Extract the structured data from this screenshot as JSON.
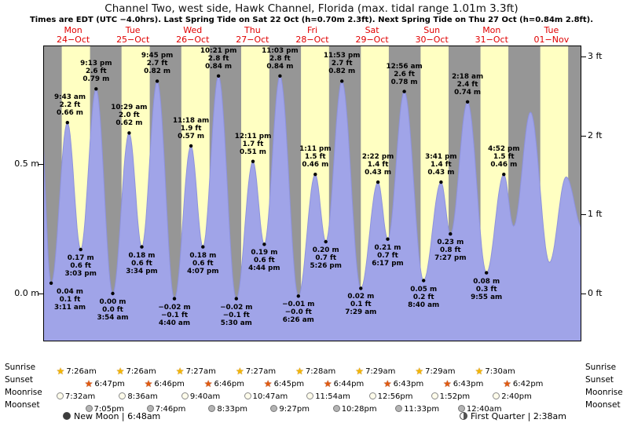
{
  "header": {
    "title": "Channel Two, west side, Hawk Channel, Florida (max. tidal range 1.01m 3.3ft)",
    "subtitle": "Times are EDT (UTC −4.0hrs). Last Spring Tide on Sat 22 Oct (h=0.70m 2.3ft). Next Spring Tide on Thu 27 Oct (h=0.84m 2.8ft)."
  },
  "days": [
    {
      "dow": "Mon",
      "date": "24−Oct"
    },
    {
      "dow": "Tue",
      "date": "25−Oct"
    },
    {
      "dow": "Wed",
      "date": "26−Oct"
    },
    {
      "dow": "Thu",
      "date": "27−Oct"
    },
    {
      "dow": "Fri",
      "date": "28−Oct"
    },
    {
      "dow": "Sat",
      "date": "29−Oct"
    },
    {
      "dow": "Sun",
      "date": "30−Oct"
    },
    {
      "dow": "Mon",
      "date": "31−Oct"
    },
    {
      "dow": "Tue",
      "date": "01−Nov"
    }
  ],
  "axes": {
    "left_ticks": [
      {
        "label": "0.5 m",
        "value_m": 0.5
      },
      {
        "label": "0.0 m",
        "value_m": 0.0
      }
    ],
    "right_ticks": [
      {
        "label": "3 ft",
        "value_m": 0.9144
      },
      {
        "label": "2 ft",
        "value_m": 0.6096
      },
      {
        "label": "1 ft",
        "value_m": 0.3048
      },
      {
        "label": "0 ft",
        "value_m": 0.0
      }
    ]
  },
  "chart_data": {
    "type": "area",
    "title": "Channel Two, west side, Hawk Channel, Florida tide curve",
    "x_axis": "time, Mon 24 Oct 00:00 to Tue 01 Nov 24:00, hours",
    "x_range_hours": [
      0,
      216
    ],
    "y_range_m": [
      -0.19,
      0.96
    ],
    "units": {
      "left": "m",
      "right": "ft"
    },
    "day_band_colors": {
      "daylight": "#ffffc2",
      "night": "#969696"
    },
    "curve_color": "#a0a4e8",
    "curve_stroke": "#8d92dd",
    "extremes": [
      {
        "day": 0,
        "type": "low",
        "time": "3:11 am",
        "m_label": "0.04 m",
        "ft_label": "0.1 ft",
        "value_m": 0.04
      },
      {
        "day": 0,
        "type": "high",
        "time": "9:43 am",
        "m_label": "0.66 m",
        "ft_label": "2.2 ft",
        "value_m": 0.66
      },
      {
        "day": 0,
        "type": "low",
        "time": "3:03 pm",
        "m_label": "0.17 m",
        "ft_label": "0.6 ft",
        "value_m": 0.17
      },
      {
        "day": 0,
        "type": "high",
        "time": "9:13 pm",
        "m_label": "0.79 m",
        "ft_label": "2.6 ft",
        "value_m": 0.79
      },
      {
        "day": 1,
        "type": "low",
        "time": "3:54 am",
        "m_label": "0.00 m",
        "ft_label": "0.0 ft",
        "value_m": 0.0
      },
      {
        "day": 1,
        "type": "high",
        "time": "10:29 am",
        "m_label": "0.62 m",
        "ft_label": "2.0 ft",
        "value_m": 0.62
      },
      {
        "day": 1,
        "type": "low",
        "time": "3:34 pm",
        "m_label": "0.18 m",
        "ft_label": "0.6 ft",
        "value_m": 0.18
      },
      {
        "day": 1,
        "type": "high",
        "time": "9:45 pm",
        "m_label": "0.82 m",
        "ft_label": "2.7 ft",
        "value_m": 0.82
      },
      {
        "day": 2,
        "type": "low",
        "time": "4:40 am",
        "m_label": "−0.02 m",
        "ft_label": "−0.1 ft",
        "value_m": -0.02
      },
      {
        "day": 2,
        "type": "high",
        "time": "11:18 am",
        "m_label": "0.57 m",
        "ft_label": "1.9 ft",
        "value_m": 0.57
      },
      {
        "day": 2,
        "type": "low",
        "time": "4:07 pm",
        "m_label": "0.18 m",
        "ft_label": "0.6 ft",
        "value_m": 0.18
      },
      {
        "day": 2,
        "type": "high",
        "time": "10:21 pm",
        "m_label": "0.84 m",
        "ft_label": "2.8 ft",
        "value_m": 0.84
      },
      {
        "day": 3,
        "type": "low",
        "time": "5:30 am",
        "m_label": "−0.02 m",
        "ft_label": "−0.1 ft",
        "value_m": -0.02
      },
      {
        "day": 3,
        "type": "high",
        "time": "12:11 pm",
        "m_label": "0.51 m",
        "ft_label": "1.7 ft",
        "value_m": 0.51
      },
      {
        "day": 3,
        "type": "low",
        "time": "4:44 pm",
        "m_label": "0.19 m",
        "ft_label": "0.6 ft",
        "value_m": 0.19
      },
      {
        "day": 3,
        "type": "high",
        "time": "11:03 pm",
        "m_label": "0.84 m",
        "ft_label": "2.8 ft",
        "value_m": 0.84
      },
      {
        "day": 4,
        "type": "low",
        "time": "6:26 am",
        "m_label": "−0.01 m",
        "ft_label": "−0.0 ft",
        "value_m": -0.01
      },
      {
        "day": 4,
        "type": "high",
        "time": "1:11 pm",
        "m_label": "0.46 m",
        "ft_label": "1.5 ft",
        "value_m": 0.46
      },
      {
        "day": 4,
        "type": "low",
        "time": "5:26 pm",
        "m_label": "0.20 m",
        "ft_label": "0.7 ft",
        "value_m": 0.2
      },
      {
        "day": 4,
        "type": "high",
        "time": "11:53 pm",
        "m_label": "0.82 m",
        "ft_label": "2.7 ft",
        "value_m": 0.82
      },
      {
        "day": 5,
        "type": "low",
        "time": "7:29 am",
        "m_label": "0.02 m",
        "ft_label": "0.1 ft",
        "value_m": 0.02
      },
      {
        "day": 5,
        "type": "high",
        "time": "2:22 pm",
        "m_label": "0.43 m",
        "ft_label": "1.4 ft",
        "value_m": 0.43
      },
      {
        "day": 5,
        "type": "low",
        "time": "6:17 pm",
        "m_label": "0.21 m",
        "ft_label": "0.7 ft",
        "value_m": 0.21
      },
      {
        "day": 6,
        "type": "high",
        "time": "12:56 am",
        "m_label": "0.78 m",
        "ft_label": "2.6 ft",
        "value_m": 0.78
      },
      {
        "day": 6,
        "type": "low",
        "time": "8:40 am",
        "m_label": "0.05 m",
        "ft_label": "0.2 ft",
        "value_m": 0.05
      },
      {
        "day": 6,
        "type": "high",
        "time": "3:41 pm",
        "m_label": "0.43 m",
        "ft_label": "1.4 ft",
        "value_m": 0.43
      },
      {
        "day": 6,
        "type": "low",
        "time": "7:27 pm",
        "m_label": "0.23 m",
        "ft_label": "0.8 ft",
        "value_m": 0.23
      },
      {
        "day": 7,
        "type": "high",
        "time": "2:18 am",
        "m_label": "0.74 m",
        "ft_label": "2.4 ft",
        "value_m": 0.74
      },
      {
        "day": 7,
        "type": "low",
        "time": "9:55 am",
        "m_label": "0.08 m",
        "ft_label": "0.3 ft",
        "value_m": 0.08
      },
      {
        "day": 7,
        "type": "high",
        "time": "4:52 pm",
        "m_label": "0.46 m",
        "ft_label": "1.5 ft",
        "value_m": 0.46
      }
    ],
    "edge_points_estimated": {
      "before": [
        {
          "t": -1.5,
          "v": 0.76
        }
      ],
      "after": [
        {
          "t": 188.8,
          "v": 0.26
        },
        {
          "t": 195.6,
          "v": 0.7
        },
        {
          "t": 203.2,
          "v": 0.12
        },
        {
          "t": 209.9,
          "v": 0.45
        },
        {
          "t": 216.5,
          "v": 0.25
        }
      ]
    }
  },
  "almanac": {
    "sunrise": {
      "label": "Sunrise",
      "times": [
        "7:26am",
        "7:26am",
        "7:27am",
        "7:27am",
        "7:28am",
        "7:29am",
        "7:29am",
        "7:30am"
      ]
    },
    "sunset": {
      "label": "Sunset",
      "times": [
        "6:47pm",
        "6:46pm",
        "6:46pm",
        "6:45pm",
        "6:44pm",
        "6:43pm",
        "6:43pm",
        "6:42pm"
      ]
    },
    "moonrise": {
      "label": "Moonrise",
      "times": [
        "7:32am",
        "8:36am",
        "9:40am",
        "10:47am",
        "11:54am",
        "12:56pm",
        "1:52pm",
        "2:40pm"
      ]
    },
    "moonset": {
      "label": "Moonset",
      "times": [
        "7:05pm",
        "7:46pm",
        "8:33pm",
        "9:27pm",
        "10:28pm",
        "11:33pm",
        "12:40am"
      ]
    }
  },
  "moon_phases": [
    {
      "icon": "new-moon",
      "text": "New Moon | 6:48am"
    },
    {
      "icon": "first-quarter",
      "text": "First Quarter | 2:38am"
    }
  ]
}
